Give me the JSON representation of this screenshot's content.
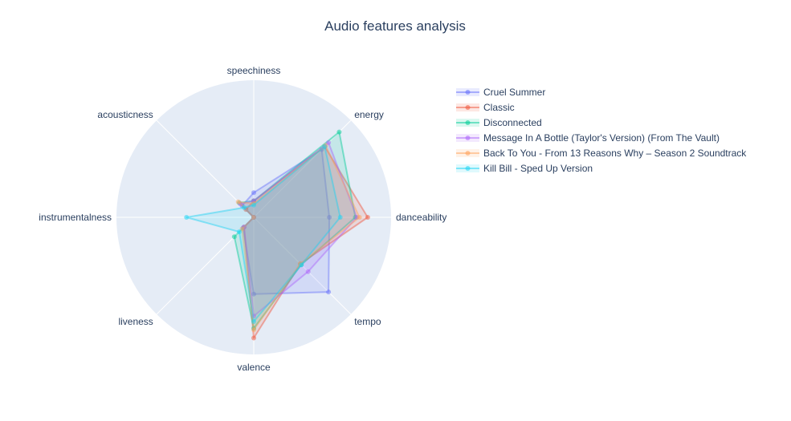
{
  "chart_data": {
    "type": "radar",
    "title": "Audio features analysis",
    "axes": [
      "danceability",
      "energy",
      "speechiness",
      "acousticness",
      "instrumentalness",
      "liveness",
      "valence",
      "tempo"
    ],
    "range": [
      0,
      1
    ],
    "grid": true,
    "legend_position": "top-right",
    "series": [
      {
        "name": "Cruel Summer",
        "color": "#636efa",
        "values": [
          0.55,
          0.7,
          0.18,
          0.12,
          0.0,
          0.11,
          0.56,
          0.77
        ]
      },
      {
        "name": "Classic",
        "color": "#ef553b",
        "values": [
          0.83,
          0.73,
          0.12,
          0.08,
          0.0,
          0.1,
          0.88,
          0.48
        ]
      },
      {
        "name": "Disconnected",
        "color": "#00cc96",
        "values": [
          0.74,
          0.88,
          0.12,
          0.15,
          0.0,
          0.2,
          0.81,
          0.49
        ]
      },
      {
        "name": "Message In A Bottle (Taylor's Version) (From The Vault)",
        "color": "#ab63fa",
        "values": [
          0.75,
          0.77,
          0.12,
          0.14,
          0.0,
          0.1,
          0.72,
          0.56
        ]
      },
      {
        "name": "Back To You - From 13 Reasons Why – Season 2 Soundtrack",
        "color": "#ffa15a",
        "values": [
          0.77,
          0.74,
          0.1,
          0.16,
          0.0,
          0.12,
          0.82,
          0.48
        ]
      },
      {
        "name": "Kill Bill - Sped Up Version",
        "color": "#19d3f3",
        "values": [
          0.63,
          0.73,
          0.09,
          0.1,
          0.49,
          0.15,
          0.76,
          0.49
        ]
      }
    ]
  }
}
